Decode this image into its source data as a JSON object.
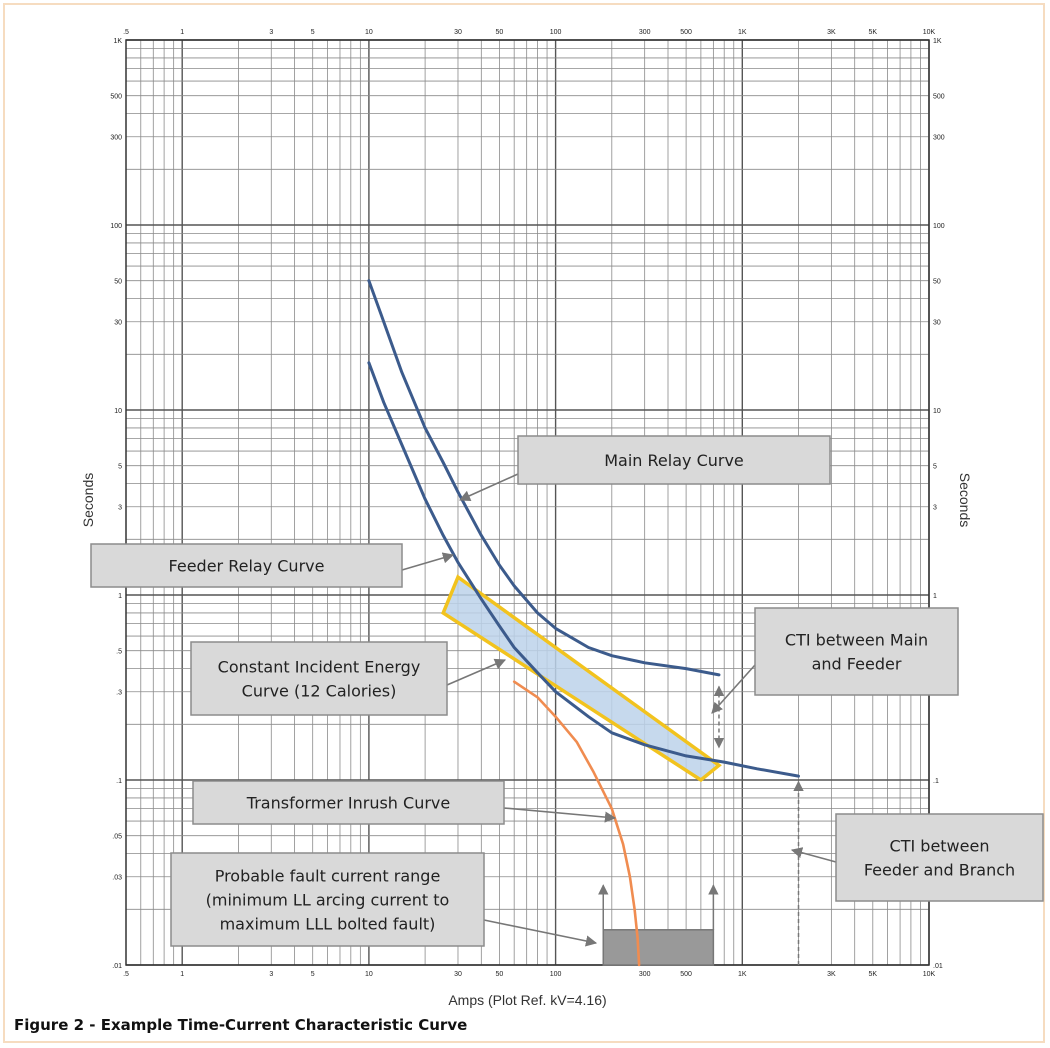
{
  "caption": "Figure 2 - Example Time-Current Characteristic Curve",
  "chart_data": {
    "type": "line",
    "xlabel": "Amps (Plot Ref. kV=4.16)",
    "ylabel": "Seconds",
    "xscale": "log",
    "yscale": "log",
    "xlim": [
      0.5,
      10000
    ],
    "ylim": [
      0.01,
      1000
    ],
    "grid": true,
    "x_tick_labels": [
      {
        "value": 0.5,
        "label": ".5"
      },
      {
        "value": 1,
        "label": "1"
      },
      {
        "value": 3,
        "label": "3"
      },
      {
        "value": 5,
        "label": "5"
      },
      {
        "value": 10,
        "label": "10"
      },
      {
        "value": 30,
        "label": "30"
      },
      {
        "value": 50,
        "label": "50"
      },
      {
        "value": 100,
        "label": "100"
      },
      {
        "value": 300,
        "label": "300"
      },
      {
        "value": 500,
        "label": "500"
      },
      {
        "value": 1000,
        "label": "1K"
      },
      {
        "value": 3000,
        "label": "3K"
      },
      {
        "value": 5000,
        "label": "5K"
      },
      {
        "value": 10000,
        "label": "10K"
      }
    ],
    "y_tick_labels": [
      {
        "value": 1000,
        "label": "1K"
      },
      {
        "value": 500,
        "label": "500"
      },
      {
        "value": 300,
        "label": "300"
      },
      {
        "value": 100,
        "label": "100"
      },
      {
        "value": 50,
        "label": "50"
      },
      {
        "value": 30,
        "label": "30"
      },
      {
        "value": 10,
        "label": "10"
      },
      {
        "value": 5,
        "label": "5"
      },
      {
        "value": 3,
        "label": "3"
      },
      {
        "value": 1,
        "label": "1"
      },
      {
        "value": 0.5,
        "label": ".5"
      },
      {
        "value": 0.3,
        "label": ".3"
      },
      {
        "value": 0.1,
        "label": ".1"
      },
      {
        "value": 0.05,
        "label": ".05"
      },
      {
        "value": 0.03,
        "label": ".03"
      },
      {
        "value": 0.01,
        "label": ".01"
      }
    ],
    "series": [
      {
        "name": "Main Relay Curve",
        "color": "#3c5b8c",
        "x": [
          10,
          12,
          15,
          20,
          25,
          30,
          40,
          50,
          60,
          80,
          100,
          150,
          200,
          300,
          500,
          750
        ],
        "y": [
          50,
          30,
          16,
          8,
          5.2,
          3.6,
          2.1,
          1.45,
          1.12,
          0.8,
          0.66,
          0.52,
          0.47,
          0.43,
          0.4,
          0.37
        ]
      },
      {
        "name": "Feeder Relay Curve",
        "color": "#3c5b8c",
        "x": [
          10,
          12,
          15,
          20,
          25,
          30,
          40,
          50,
          60,
          80,
          100,
          150,
          200,
          300,
          500,
          800,
          1200,
          2000
        ],
        "y": [
          18,
          11,
          6.5,
          3.3,
          2.1,
          1.5,
          0.95,
          0.68,
          0.52,
          0.38,
          0.3,
          0.22,
          0.18,
          0.155,
          0.135,
          0.125,
          0.115,
          0.105
        ]
      },
      {
        "name": "Transformer Inrush Curve",
        "color": "#f08c50",
        "x": [
          60,
          80,
          100,
          130,
          160,
          200,
          230,
          250,
          265,
          275,
          280
        ],
        "y": [
          0.34,
          0.28,
          0.22,
          0.16,
          0.11,
          0.07,
          0.045,
          0.03,
          0.02,
          0.014,
          0.01
        ]
      }
    ],
    "regions": [
      {
        "name": "Constant Incident Energy Curve (12 Calories)",
        "color": "#f2c31e",
        "fill": "#bcd2ea",
        "corners_x": [
          25,
          30,
          750,
          600
        ],
        "corners_y": [
          0.8,
          1.25,
          0.12,
          0.1
        ]
      },
      {
        "name": "Probable fault current range",
        "color": "#777777",
        "fill": "#999999",
        "x_range": [
          180,
          700
        ],
        "y_range": [
          0.01,
          0.0155
        ]
      }
    ],
    "annotations": [
      {
        "lines": [
          "Main Relay Curve"
        ]
      },
      {
        "lines": [
          "Feeder Relay Curve"
        ]
      },
      {
        "lines": [
          "CTI between Main",
          "and Feeder"
        ]
      },
      {
        "lines": [
          "Constant Incident Energy",
          "Curve (12 Calories)"
        ]
      },
      {
        "lines": [
          "Transformer Inrush Curve"
        ]
      },
      {
        "lines": [
          "CTI between",
          "Feeder and Branch"
        ]
      },
      {
        "lines": [
          "Probable fault current range",
          "(minimum LL arcing current to",
          "maximum LLL bolted fault)"
        ]
      }
    ]
  }
}
